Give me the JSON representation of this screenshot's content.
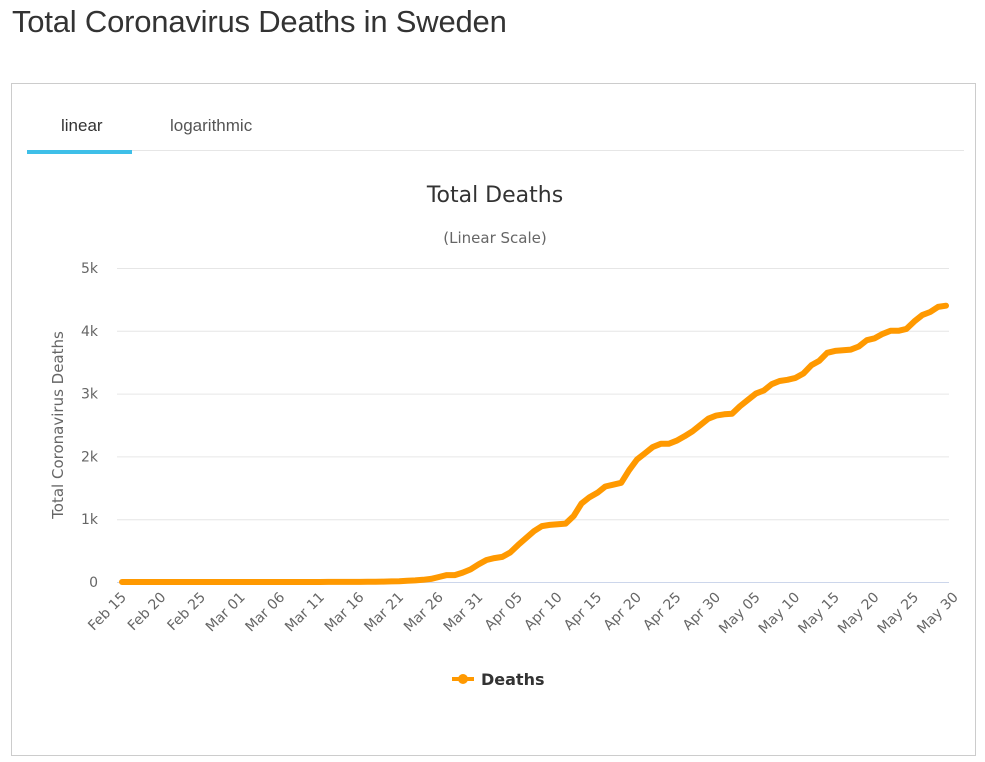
{
  "page": {
    "title": "Total Coronavirus Deaths in Sweden"
  },
  "tabs": [
    {
      "label": "linear",
      "active": true
    },
    {
      "label": "logarithmic",
      "active": false
    }
  ],
  "colors": {
    "series": "#ff9900",
    "tab_active": "#3ebfe8",
    "grid": "#e6e6e6"
  },
  "chart_data": {
    "type": "line",
    "title": "Total Deaths",
    "subtitle": "(Linear Scale)",
    "ylabel": "Total Coronavirus Deaths",
    "xlabel": "",
    "x_start": "Feb 15",
    "x_end": "May 30",
    "ylim": [
      0,
      5000
    ],
    "y_ticks": [
      {
        "value": 0,
        "label": "0"
      },
      {
        "value": 1000,
        "label": "1k"
      },
      {
        "value": 2000,
        "label": "2k"
      },
      {
        "value": 3000,
        "label": "3k"
      },
      {
        "value": 4000,
        "label": "4k"
      },
      {
        "value": 5000,
        "label": "5k"
      }
    ],
    "x_ticks": [
      "Feb 15",
      "Feb 20",
      "Feb 25",
      "Mar 01",
      "Mar 06",
      "Mar 11",
      "Mar 16",
      "Mar 21",
      "Mar 26",
      "Mar 31",
      "Apr 05",
      "Apr 10",
      "Apr 15",
      "Apr 20",
      "Apr 25",
      "Apr 30",
      "May 05",
      "May 10",
      "May 15",
      "May 20",
      "May 25",
      "May 30"
    ],
    "legend": {
      "position": "bottom",
      "entries": [
        "Deaths"
      ]
    },
    "series": [
      {
        "name": "Deaths",
        "values": [
          0,
          0,
          0,
          0,
          0,
          0,
          0,
          0,
          0,
          0,
          0,
          0,
          0,
          0,
          0,
          0,
          0,
          0,
          0,
          0,
          0,
          0,
          0,
          0,
          0,
          0,
          1,
          1,
          1,
          1,
          2,
          3,
          5,
          7,
          10,
          12,
          20,
          25,
          35,
          50,
          80,
          110,
          110,
          150,
          200,
          280,
          350,
          380,
          400,
          470,
          590,
          700,
          810,
          890,
          910,
          920,
          930,
          1050,
          1250,
          1350,
          1420,
          1520,
          1550,
          1580,
          1780,
          1950,
          2050,
          2150,
          2200,
          2200,
          2250,
          2320,
          2400,
          2500,
          2600,
          2650,
          2670,
          2680,
          2800,
          2900,
          3000,
          3050,
          3150,
          3200,
          3220,
          3250,
          3320,
          3450,
          3520,
          3650,
          3680,
          3690,
          3700,
          3750,
          3850,
          3880,
          3950,
          4000,
          4000,
          4030,
          4150,
          4250,
          4300,
          4380,
          4400
        ]
      }
    ]
  }
}
